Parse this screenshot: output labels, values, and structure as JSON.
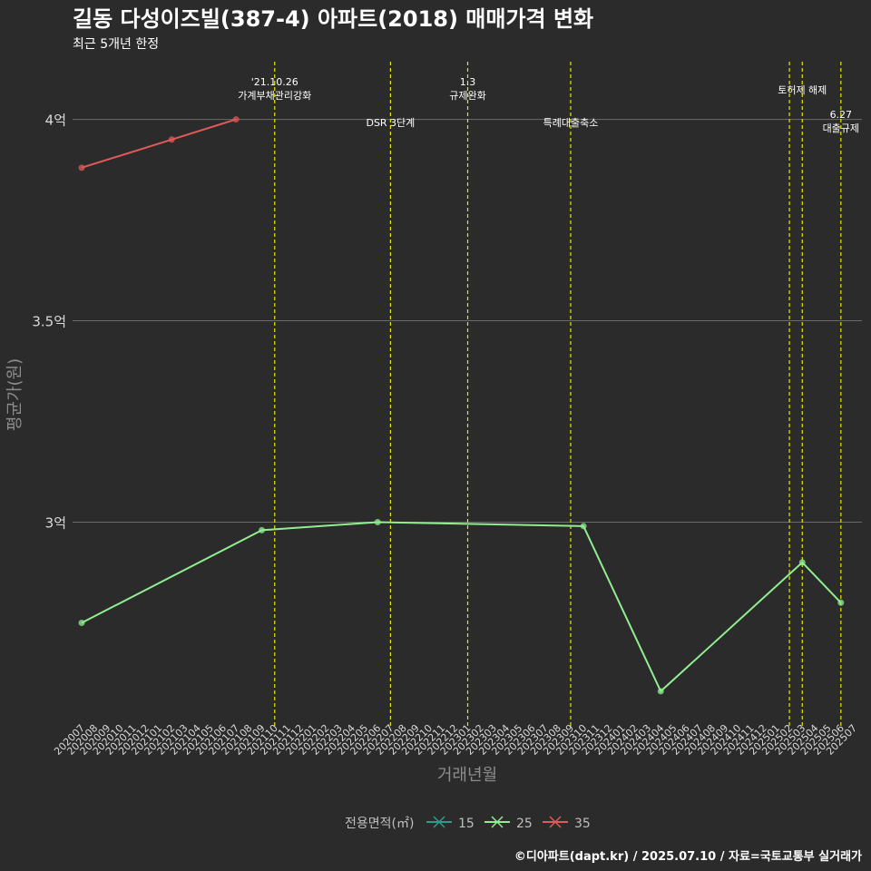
{
  "title": "길동 다성이즈빌(387-4) 아파트(2018) 매매가격 변화",
  "subtitle": "최근 5개년 한정",
  "caption": "©디아파트(dapt.kr) / 2025.07.10 / 자료=국토교통부 실거래가",
  "chart_data": {
    "type": "line",
    "xlabel": "거래년월",
    "ylabel": "평균가(원)",
    "ylim": [
      2.5,
      4.15
    ],
    "yticks": [
      {
        "value": 3.0,
        "label": "3억"
      },
      {
        "value": 3.5,
        "label": "3.5억"
      },
      {
        "value": 4.0,
        "label": "4억"
      }
    ],
    "categories": [
      "202007",
      "202008",
      "202009",
      "202010",
      "202011",
      "202012",
      "202101",
      "202102",
      "202103",
      "202104",
      "202105",
      "202106",
      "202107",
      "202108",
      "202109",
      "202110",
      "202111",
      "202112",
      "202201",
      "202202",
      "202203",
      "202204",
      "202205",
      "202206",
      "202207",
      "202208",
      "202209",
      "202210",
      "202211",
      "202212",
      "202301",
      "202302",
      "202303",
      "202304",
      "202305",
      "202306",
      "202307",
      "202308",
      "202309",
      "202310",
      "202311",
      "202312",
      "202401",
      "202402",
      "202403",
      "202404",
      "202405",
      "202406",
      "202407",
      "202408",
      "202409",
      "202410",
      "202411",
      "202412",
      "202501",
      "202502",
      "202503",
      "202504",
      "202505",
      "202506",
      "202507"
    ],
    "legend": {
      "title": "전용면적(㎡)",
      "position": "bottom"
    },
    "series": [
      {
        "name": "15",
        "color": "#2a9d8f",
        "points": []
      },
      {
        "name": "25",
        "color": "#90ee90",
        "points": [
          {
            "x": "202007",
            "y": 2.75
          },
          {
            "x": "202109",
            "y": 2.98
          },
          {
            "x": "202206",
            "y": 3.0
          },
          {
            "x": "202310",
            "y": 2.99
          },
          {
            "x": "202404",
            "y": 2.58
          },
          {
            "x": "202503",
            "y": 2.9
          },
          {
            "x": "202506",
            "y": 2.8
          }
        ]
      },
      {
        "name": "35",
        "color": "#e05a5a",
        "points": [
          {
            "x": "202007",
            "y": 3.88
          },
          {
            "x": "202102",
            "y": 3.95
          },
          {
            "x": "202107",
            "y": 4.0
          }
        ]
      }
    ],
    "events": [
      {
        "x": "202110",
        "lines": [
          "'21.10.26",
          "가계부채관리강화"
        ],
        "tier": "high"
      },
      {
        "x": "202207",
        "lines": [
          "DSR 3단계"
        ],
        "tier": "low"
      },
      {
        "x": "202301",
        "lines": [
          "1.3",
          "규제완화"
        ],
        "tier": "high"
      },
      {
        "x": "202309",
        "lines": [
          "특례대출축소"
        ],
        "tier": "low"
      },
      {
        "x": "202502",
        "lines": [],
        "tier": "mid"
      },
      {
        "x": "202503",
        "lines": [
          "토허제 해제"
        ],
        "tier": "mid"
      },
      {
        "x": "202506",
        "lines": [
          "6.27",
          "대출규제"
        ],
        "tier": "right"
      }
    ],
    "grid": true,
    "event_line_color": "#e6e600"
  }
}
